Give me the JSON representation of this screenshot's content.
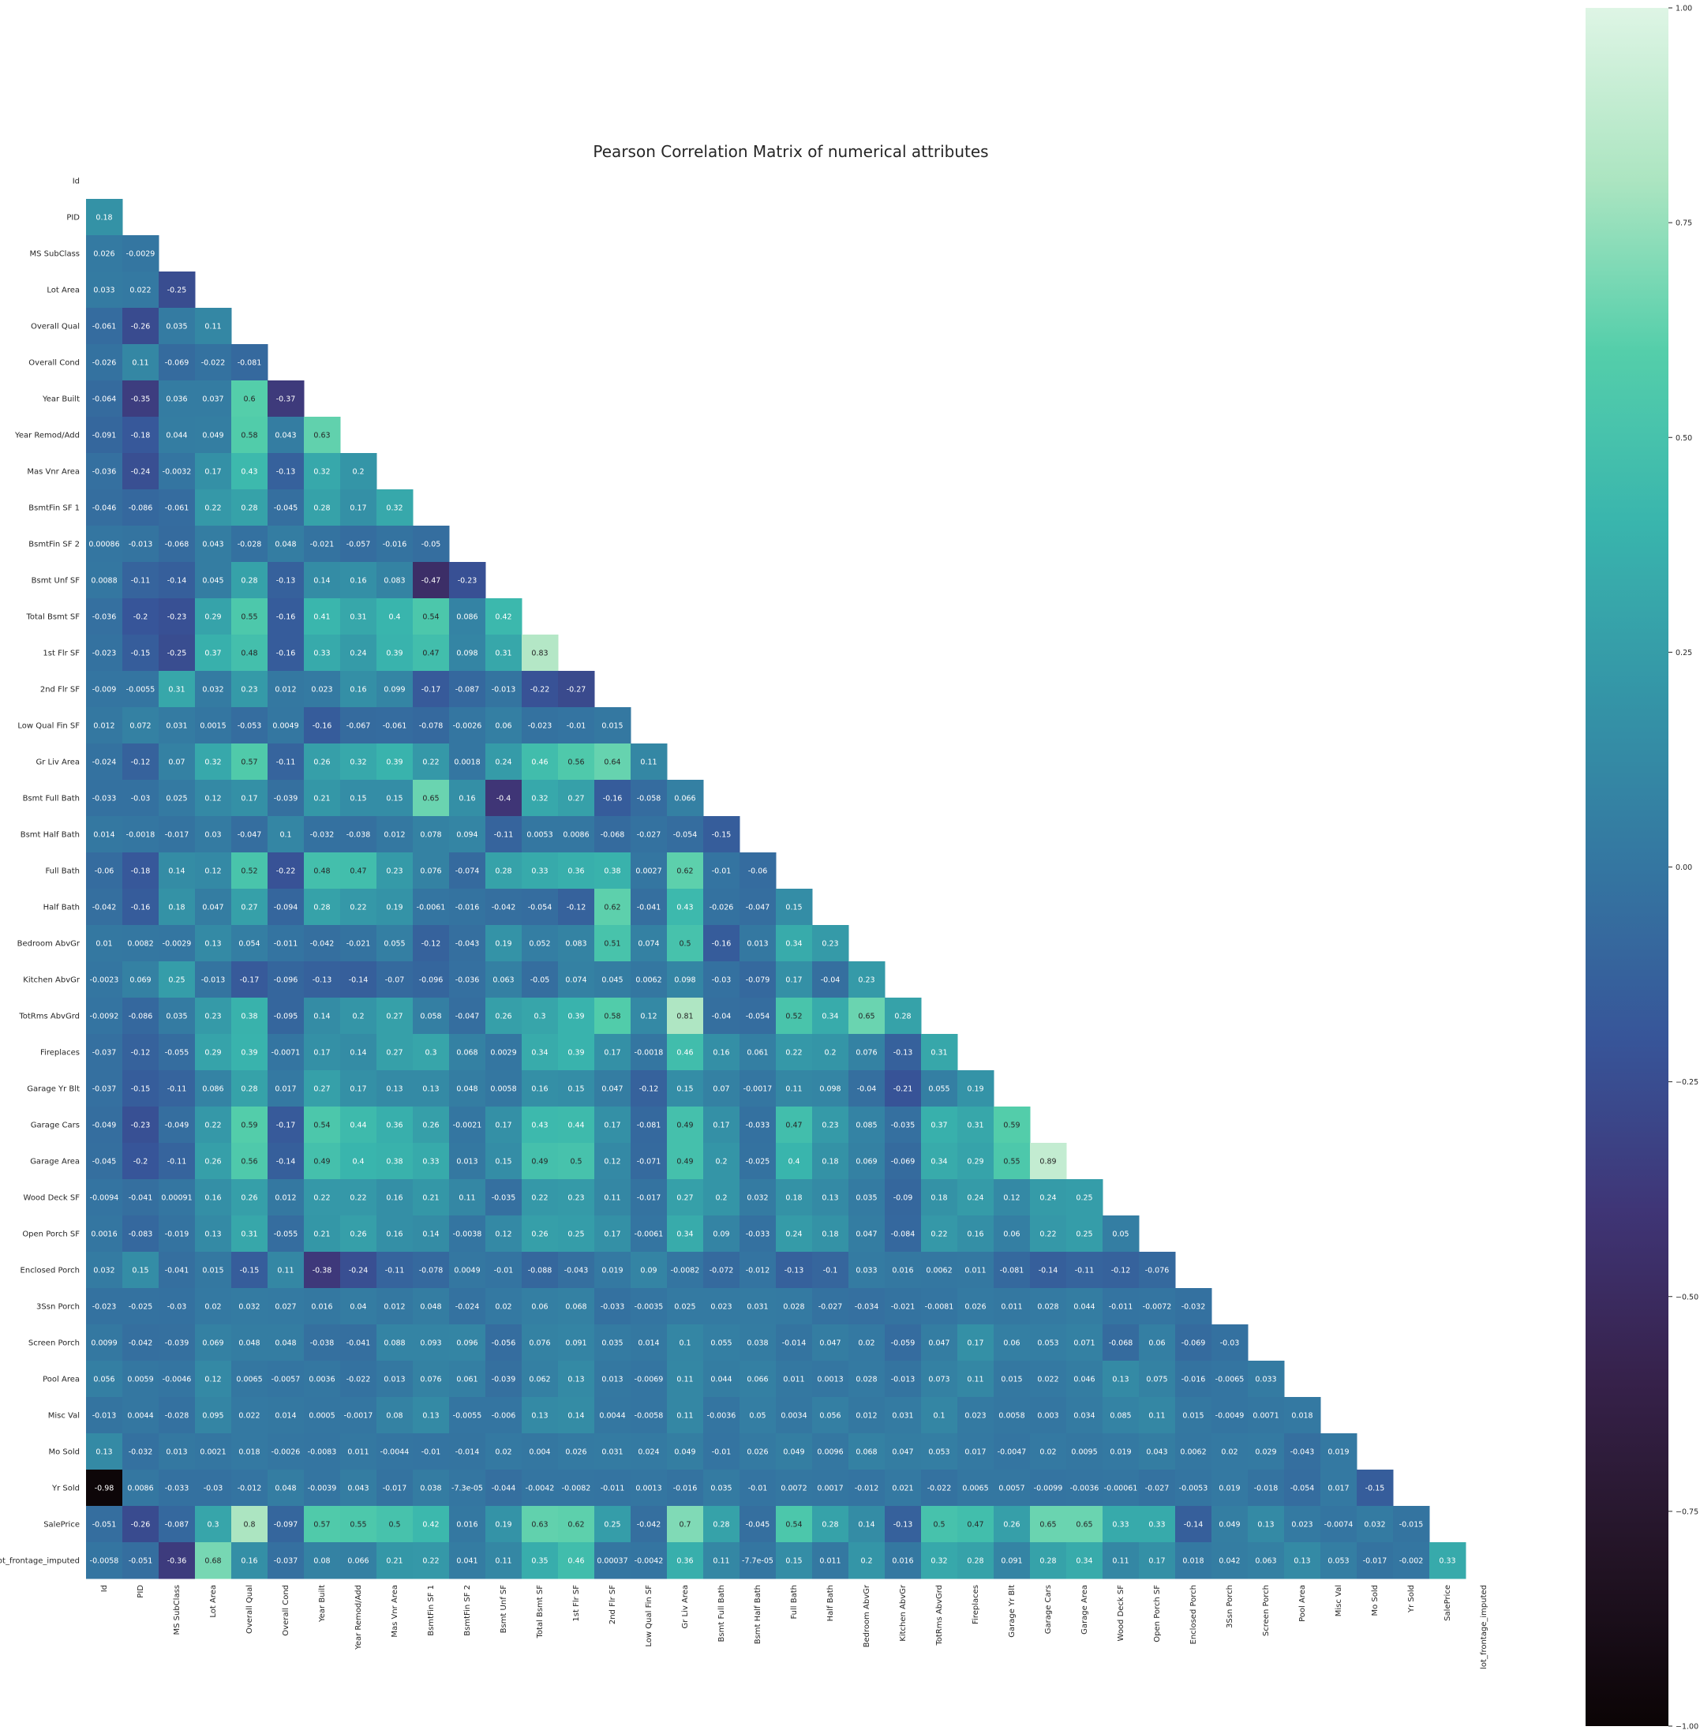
{
  "chart_data": {
    "type": "heatmap",
    "title": "Pearson Correlation Matrix of numerical attributes",
    "colormap": "mako",
    "vmin": -1.0,
    "vmax": 1.0,
    "mask": "upper-triangle-including-diagonal",
    "labels": [
      "Id",
      "PID",
      "MS SubClass",
      "Lot Area",
      "Overall Qual",
      "Overall Cond",
      "Year Built",
      "Year Remod/Add",
      "Mas Vnr Area",
      "BsmtFin SF 1",
      "BsmtFin SF 2",
      "Bsmt Unf SF",
      "Total Bsmt SF",
      "1st Flr SF",
      "2nd Flr SF",
      "Low Qual Fin SF",
      "Gr Liv Area",
      "Bsmt Full Bath",
      "Bsmt Half Bath",
      "Full Bath",
      "Half Bath",
      "Bedroom AbvGr",
      "Kitchen AbvGr",
      "TotRms AbvGrd",
      "Fireplaces",
      "Garage Yr Blt",
      "Garage Cars",
      "Garage Area",
      "Wood Deck SF",
      "Open Porch SF",
      "Enclosed Porch",
      "3Ssn Porch",
      "Screen Porch",
      "Pool Area",
      "Misc Val",
      "Mo Sold",
      "Yr Sold",
      "SalePrice",
      "lot_frontage_imputed"
    ],
    "rows": [
      [],
      [
        "0.18"
      ],
      [
        "0.026",
        "-0.0029"
      ],
      [
        "0.033",
        "0.022",
        "-0.25"
      ],
      [
        "-0.061",
        "-0.26",
        "0.035",
        "0.11"
      ],
      [
        "-0.026",
        "0.11",
        "-0.069",
        "-0.022",
        "-0.081"
      ],
      [
        "-0.064",
        "-0.35",
        "0.036",
        "0.037",
        "0.6",
        "-0.37"
      ],
      [
        "-0.091",
        "-0.18",
        "0.044",
        "0.049",
        "0.58",
        "0.043",
        "0.63"
      ],
      [
        "-0.036",
        "-0.24",
        "-0.0032",
        "0.17",
        "0.43",
        "-0.13",
        "0.32",
        "0.2"
      ],
      [
        "-0.046",
        "-0.086",
        "-0.061",
        "0.22",
        "0.28",
        "-0.045",
        "0.28",
        "0.17",
        "0.32"
      ],
      [
        "0.00086",
        "-0.013",
        "-0.068",
        "0.043",
        "-0.028",
        "0.048",
        "-0.021",
        "-0.057",
        "-0.016",
        "-0.05"
      ],
      [
        "0.0088",
        "-0.11",
        "-0.14",
        "0.045",
        "0.28",
        "-0.13",
        "0.14",
        "0.16",
        "0.083",
        "-0.47",
        "-0.23"
      ],
      [
        "-0.036",
        "-0.2",
        "-0.23",
        "0.29",
        "0.55",
        "-0.16",
        "0.41",
        "0.31",
        "0.4",
        "0.54",
        "0.086",
        "0.42"
      ],
      [
        "-0.023",
        "-0.15",
        "-0.25",
        "0.37",
        "0.48",
        "-0.16",
        "0.33",
        "0.24",
        "0.39",
        "0.47",
        "0.098",
        "0.31",
        "0.83"
      ],
      [
        "-0.009",
        "-0.0055",
        "0.31",
        "0.032",
        "0.23",
        "0.012",
        "0.023",
        "0.16",
        "0.099",
        "-0.17",
        "-0.087",
        "-0.013",
        "-0.22",
        "-0.27"
      ],
      [
        "0.012",
        "0.072",
        "0.031",
        "0.0015",
        "-0.053",
        "0.0049",
        "-0.16",
        "-0.067",
        "-0.061",
        "-0.078",
        "-0.0026",
        "0.06",
        "-0.023",
        "-0.01",
        "0.015"
      ],
      [
        "-0.024",
        "-0.12",
        "0.07",
        "0.32",
        "0.57",
        "-0.11",
        "0.26",
        "0.32",
        "0.39",
        "0.22",
        "0.0018",
        "0.24",
        "0.46",
        "0.56",
        "0.64",
        "0.11"
      ],
      [
        "-0.033",
        "-0.03",
        "0.025",
        "0.12",
        "0.17",
        "-0.039",
        "0.21",
        "0.15",
        "0.15",
        "0.65",
        "0.16",
        "-0.4",
        "0.32",
        "0.27",
        "-0.16",
        "-0.058",
        "0.066"
      ],
      [
        "0.014",
        "-0.0018",
        "-0.017",
        "0.03",
        "-0.047",
        "0.1",
        "-0.032",
        "-0.038",
        "0.012",
        "0.078",
        "0.094",
        "-0.11",
        "0.0053",
        "0.0086",
        "-0.068",
        "-0.027",
        "-0.054",
        "-0.15"
      ],
      [
        "-0.06",
        "-0.18",
        "0.14",
        "0.12",
        "0.52",
        "-0.22",
        "0.48",
        "0.47",
        "0.23",
        "0.076",
        "-0.074",
        "0.28",
        "0.33",
        "0.36",
        "0.38",
        "0.0027",
        "0.62",
        "-0.01",
        "-0.06"
      ],
      [
        "-0.042",
        "-0.16",
        "0.18",
        "0.047",
        "0.27",
        "-0.094",
        "0.28",
        "0.22",
        "0.19",
        "-0.0061",
        "-0.016",
        "-0.042",
        "-0.054",
        "-0.12",
        "0.62",
        "-0.041",
        "0.43",
        "-0.026",
        "-0.047",
        "0.15"
      ],
      [
        "0.01",
        "0.0082",
        "-0.0029",
        "0.13",
        "0.054",
        "-0.011",
        "-0.042",
        "-0.021",
        "0.055",
        "-0.12",
        "-0.043",
        "0.19",
        "0.052",
        "0.083",
        "0.51",
        "0.074",
        "0.5",
        "-0.16",
        "0.013",
        "0.34",
        "0.23"
      ],
      [
        "-0.0023",
        "0.069",
        "0.25",
        "-0.013",
        "-0.17",
        "-0.096",
        "-0.13",
        "-0.14",
        "-0.07",
        "-0.096",
        "-0.036",
        "0.063",
        "-0.05",
        "0.074",
        "0.045",
        "0.0062",
        "0.098",
        "-0.03",
        "-0.079",
        "0.17",
        "-0.04",
        "0.23"
      ],
      [
        "-0.0092",
        "-0.086",
        "0.035",
        "0.23",
        "0.38",
        "-0.095",
        "0.14",
        "0.2",
        "0.27",
        "0.058",
        "-0.047",
        "0.26",
        "0.3",
        "0.39",
        "0.58",
        "0.12",
        "0.81",
        "-0.04",
        "-0.054",
        "0.52",
        "0.34",
        "0.65",
        "0.28"
      ],
      [
        "-0.037",
        "-0.12",
        "-0.055",
        "0.29",
        "0.39",
        "-0.0071",
        "0.17",
        "0.14",
        "0.27",
        "0.3",
        "0.068",
        "0.0029",
        "0.34",
        "0.39",
        "0.17",
        "-0.0018",
        "0.46",
        "0.16",
        "0.061",
        "0.22",
        "0.2",
        "0.076",
        "-0.13",
        "0.31"
      ],
      [
        "-0.037",
        "-0.15",
        "-0.11",
        "0.086",
        "0.28",
        "0.017",
        "0.27",
        "0.17",
        "0.13",
        "0.13",
        "0.048",
        "0.0058",
        "0.16",
        "0.15",
        "0.047",
        "-0.12",
        "0.15",
        "0.07",
        "-0.0017",
        "0.11",
        "0.098",
        "-0.04",
        "-0.21",
        "0.055",
        "0.19"
      ],
      [
        "-0.049",
        "-0.23",
        "-0.049",
        "0.22",
        "0.59",
        "-0.17",
        "0.54",
        "0.44",
        "0.36",
        "0.26",
        "-0.0021",
        "0.17",
        "0.43",
        "0.44",
        "0.17",
        "-0.081",
        "0.49",
        "0.17",
        "-0.033",
        "0.47",
        "0.23",
        "0.085",
        "-0.035",
        "0.37",
        "0.31",
        "0.59"
      ],
      [
        "-0.045",
        "-0.2",
        "-0.11",
        "0.26",
        "0.56",
        "-0.14",
        "0.49",
        "0.4",
        "0.38",
        "0.33",
        "0.013",
        "0.15",
        "0.49",
        "0.5",
        "0.12",
        "-0.071",
        "0.49",
        "0.2",
        "-0.025",
        "0.4",
        "0.18",
        "0.069",
        "-0.069",
        "0.34",
        "0.29",
        "0.55",
        "0.89"
      ],
      [
        "-0.0094",
        "-0.041",
        "0.00091",
        "0.16",
        "0.26",
        "0.012",
        "0.22",
        "0.22",
        "0.16",
        "0.21",
        "0.11",
        "-0.035",
        "0.22",
        "0.23",
        "0.11",
        "-0.017",
        "0.27",
        "0.2",
        "0.032",
        "0.18",
        "0.13",
        "0.035",
        "-0.09",
        "0.18",
        "0.24",
        "0.12",
        "0.24",
        "0.25"
      ],
      [
        "0.0016",
        "-0.083",
        "-0.019",
        "0.13",
        "0.31",
        "-0.055",
        "0.21",
        "0.26",
        "0.16",
        "0.14",
        "-0.0038",
        "0.12",
        "0.26",
        "0.25",
        "0.17",
        "-0.0061",
        "0.34",
        "0.09",
        "-0.033",
        "0.24",
        "0.18",
        "0.047",
        "-0.084",
        "0.22",
        "0.16",
        "0.06",
        "0.22",
        "0.25",
        "0.05"
      ],
      [
        "0.032",
        "0.15",
        "-0.041",
        "0.015",
        "-0.15",
        "0.11",
        "-0.38",
        "-0.24",
        "-0.11",
        "-0.078",
        "0.0049",
        "-0.01",
        "-0.088",
        "-0.043",
        "0.019",
        "0.09",
        "-0.0082",
        "-0.072",
        "-0.012",
        "-0.13",
        "-0.1",
        "0.033",
        "0.016",
        "0.0062",
        "0.011",
        "-0.081",
        "-0.14",
        "-0.11",
        "-0.12",
        "-0.076"
      ],
      [
        "-0.023",
        "-0.025",
        "-0.03",
        "0.02",
        "0.032",
        "0.027",
        "0.016",
        "0.04",
        "0.012",
        "0.048",
        "-0.024",
        "0.02",
        "0.06",
        "0.068",
        "-0.033",
        "-0.0035",
        "0.025",
        "0.023",
        "0.031",
        "0.028",
        "-0.027",
        "-0.034",
        "-0.021",
        "-0.0081",
        "0.026",
        "0.011",
        "0.028",
        "0.044",
        "-0.011",
        "-0.0072",
        "-0.032"
      ],
      [
        "0.0099",
        "-0.042",
        "-0.039",
        "0.069",
        "0.048",
        "0.048",
        "-0.038",
        "-0.041",
        "0.088",
        "0.093",
        "0.096",
        "-0.056",
        "0.076",
        "0.091",
        "0.035",
        "0.014",
        "0.1",
        "0.055",
        "0.038",
        "-0.014",
        "0.047",
        "0.02",
        "-0.059",
        "0.047",
        "0.17",
        "0.06",
        "0.053",
        "0.071",
        "-0.068",
        "0.06",
        "-0.069",
        "-0.03"
      ],
      [
        "0.056",
        "0.0059",
        "-0.0046",
        "0.12",
        "0.0065",
        "-0.0057",
        "0.0036",
        "-0.022",
        "0.013",
        "0.076",
        "0.061",
        "-0.039",
        "0.062",
        "0.13",
        "0.013",
        "-0.0069",
        "0.11",
        "0.044",
        "0.066",
        "0.011",
        "0.0013",
        "0.028",
        "-0.013",
        "0.073",
        "0.11",
        "0.015",
        "0.022",
        "0.046",
        "0.13",
        "0.075",
        "-0.016",
        "-0.0065",
        "0.033"
      ],
      [
        "-0.013",
        "0.0044",
        "-0.028",
        "0.095",
        "0.022",
        "0.014",
        "0.0005",
        "-0.0017",
        "0.08",
        "0.13",
        "-0.0055",
        "-0.006",
        "0.13",
        "0.14",
        "0.0044",
        "-0.0058",
        "0.11",
        "-0.0036",
        "0.05",
        "0.0034",
        "0.056",
        "0.012",
        "0.031",
        "0.1",
        "0.023",
        "0.0058",
        "0.003",
        "0.034",
        "0.085",
        "0.11",
        "0.015",
        "-0.0049",
        "0.0071",
        "0.018"
      ],
      [
        "0.13",
        "-0.032",
        "0.013",
        "0.0021",
        "0.018",
        "-0.0026",
        "-0.0083",
        "0.011",
        "-0.0044",
        "-0.01",
        "-0.014",
        "0.02",
        "0.004",
        "0.026",
        "0.031",
        "0.024",
        "0.049",
        "-0.01",
        "0.026",
        "0.049",
        "0.0096",
        "0.068",
        "0.047",
        "0.053",
        "0.017",
        "-0.0047",
        "0.02",
        "0.0095",
        "0.019",
        "0.043",
        "0.0062",
        "0.02",
        "0.029",
        "-0.043",
        "0.019"
      ],
      [
        "-0.98",
        "0.0086",
        "-0.033",
        "-0.03",
        "-0.012",
        "0.048",
        "-0.0039",
        "0.043",
        "-0.017",
        "0.038",
        "-7.3e-05",
        "-0.044",
        "-0.0042",
        "-0.0082",
        "-0.011",
        "0.0013",
        "-0.016",
        "0.035",
        "-0.01",
        "0.0072",
        "0.0017",
        "-0.012",
        "0.021",
        "-0.022",
        "0.0065",
        "0.0057",
        "-0.0099",
        "-0.0036",
        "-0.00061",
        "-0.027",
        "-0.0053",
        "0.019",
        "-0.018",
        "-0.054",
        "0.017",
        "-0.15"
      ],
      [
        "-0.051",
        "-0.26",
        "-0.087",
        "0.3",
        "0.8",
        "-0.097",
        "0.57",
        "0.55",
        "0.5",
        "0.42",
        "0.016",
        "0.19",
        "0.63",
        "0.62",
        "0.25",
        "-0.042",
        "0.7",
        "0.28",
        "-0.045",
        "0.54",
        "0.28",
        "0.14",
        "-0.13",
        "0.5",
        "0.47",
        "0.26",
        "0.65",
        "0.65",
        "0.33",
        "0.33",
        "-0.14",
        "0.049",
        "0.13",
        "0.023",
        "-0.0074",
        "0.032",
        "-0.015"
      ],
      [
        "-0.0058",
        "-0.051",
        "-0.36",
        "0.68",
        "0.16",
        "-0.037",
        "0.08",
        "0.066",
        "0.21",
        "0.22",
        "0.041",
        "0.11",
        "0.35",
        "0.46",
        "0.00037",
        "-0.0042",
        "0.36",
        "0.11",
        "-7.7e-05",
        "0.15",
        "0.011",
        "0.2",
        "0.016",
        "0.32",
        "0.28",
        "0.091",
        "0.28",
        "0.34",
        "0.11",
        "0.17",
        "0.018",
        "0.042",
        "0.063",
        "0.13",
        "0.053",
        "-0.017",
        "-0.002",
        "0.33"
      ]
    ],
    "colorbar_ticks": [
      "1.00",
      "0.75",
      "0.50",
      "0.25",
      "0.00",
      "−0.25",
      "−0.50",
      "−0.75",
      "−1.00"
    ]
  }
}
